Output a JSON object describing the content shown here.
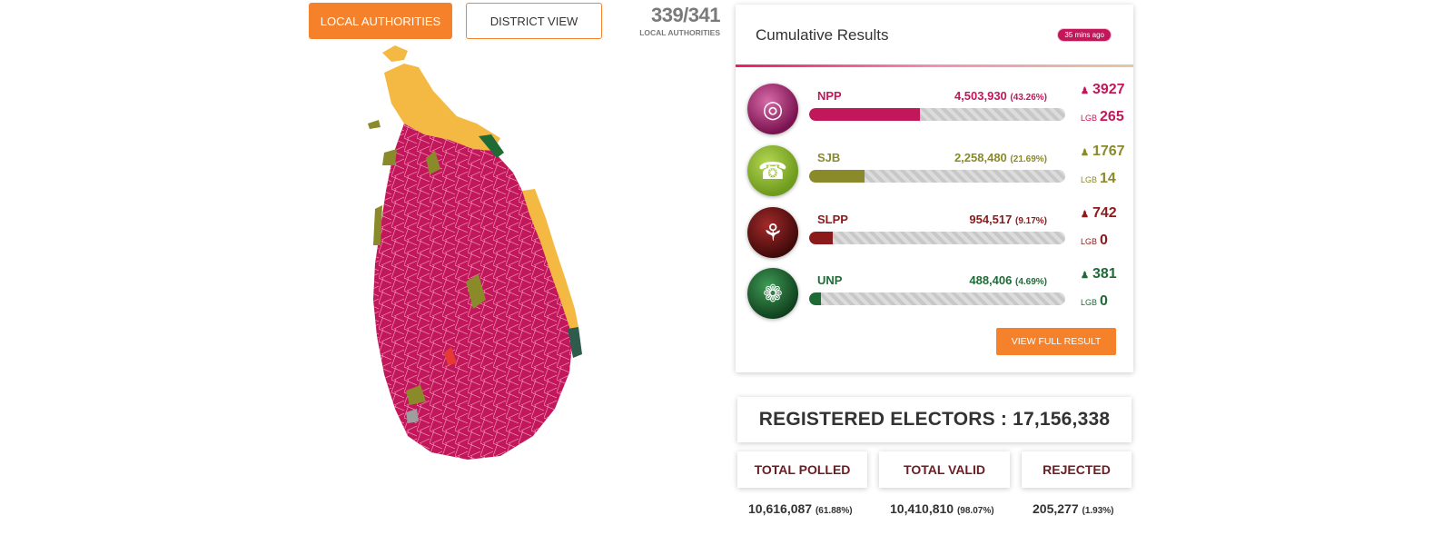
{
  "tabs": {
    "local": "LOCAL AUTHORITIES",
    "district": "DISTRICT VIEW"
  },
  "counter": {
    "value": "339/341",
    "label": "LOCAL AUTHORITIES"
  },
  "colors": {
    "accent": "#f5822a",
    "npp": "#c2185b",
    "sjb": "#8a8a2a",
    "slpp": "#8b1a1a",
    "unp": "#1e6b36",
    "tamil": "#f4b942"
  },
  "results": {
    "title": "Cumulative Results",
    "updated": "35 mins ago",
    "parties": [
      {
        "name": "NPP",
        "votes": "4,503,930",
        "pct": "(43.26%)",
        "share": 0.4326,
        "seats": "3927",
        "lgb": "265",
        "icon": "npp-logo-icon"
      },
      {
        "name": "SJB",
        "votes": "2,258,480",
        "pct": "(21.69%)",
        "share": 0.2169,
        "seats": "1767",
        "lgb": "14",
        "icon": "sjb-telephone-icon"
      },
      {
        "name": "SLPP",
        "votes": "954,517",
        "pct": "(9.17%)",
        "share": 0.0917,
        "seats": "742",
        "lgb": "0",
        "icon": "slpp-flower-icon"
      },
      {
        "name": "UNP",
        "votes": "488,406",
        "pct": "(4.69%)",
        "share": 0.0469,
        "seats": "381",
        "lgb": "0",
        "icon": "unp-elephant-icon"
      }
    ],
    "lgb_label": "LGB",
    "view_button": "VIEW FULL RESULT"
  },
  "electors": "REGISTERED ELECTORS : 17,156,338",
  "stats": [
    {
      "label": "TOTAL POLLED",
      "value": "10,616,087",
      "pct": "(61.88%)"
    },
    {
      "label": "TOTAL VALID",
      "value": "10,410,810",
      "pct": "(98.07%)"
    },
    {
      "label": "REJECTED",
      "value": "205,277",
      "pct": "(1.93%)"
    }
  ]
}
